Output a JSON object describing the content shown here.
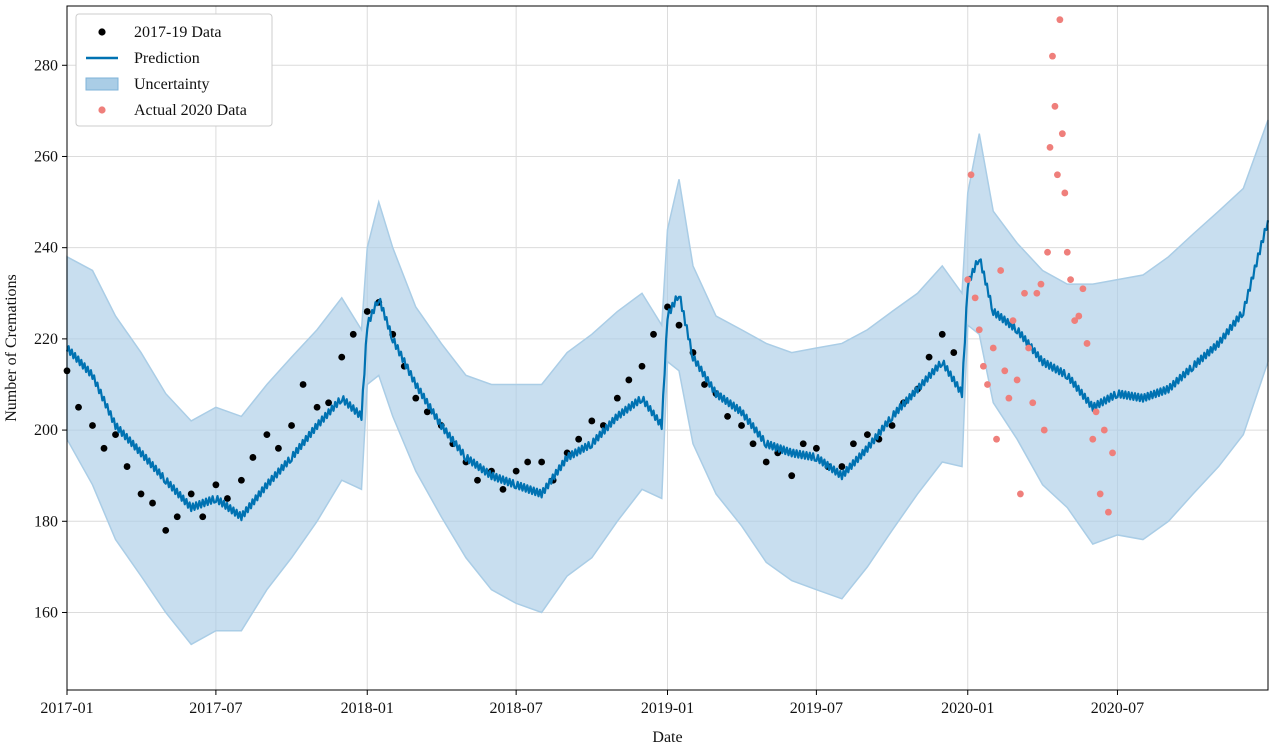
{
  "chart_data": {
    "type": "line",
    "title": "",
    "xlabel": "Date",
    "ylabel": "Number of Cremations",
    "xlim": [
      "2017-01-01",
      "2020-12-31"
    ],
    "ylim": [
      143,
      293
    ],
    "x_ticks": [
      "2017-01",
      "2017-07",
      "2018-01",
      "2018-07",
      "2019-01",
      "2019-07",
      "2020-01",
      "2020-07"
    ],
    "y_ticks": [
      160,
      180,
      200,
      220,
      240,
      260,
      280
    ],
    "grid": true,
    "legend_position": "top-left",
    "colors": {
      "data_points": "#000000",
      "prediction": "#0072b2",
      "uncertainty": "#aacde6",
      "actual_2020": "#ef7f7b"
    },
    "series": [
      {
        "name": "2017-19 Data",
        "kind": "scatter",
        "x": [
          "2017-01-01",
          "2017-01-15",
          "2017-02-01",
          "2017-02-15",
          "2017-03-01",
          "2017-03-15",
          "2017-04-01",
          "2017-04-15",
          "2017-05-01",
          "2017-05-15",
          "2017-06-01",
          "2017-06-15",
          "2017-07-01",
          "2017-07-15",
          "2017-08-01",
          "2017-08-15",
          "2017-09-01",
          "2017-09-15",
          "2017-10-01",
          "2017-10-15",
          "2017-11-01",
          "2017-11-15",
          "2017-12-01",
          "2017-12-15",
          "2018-01-01",
          "2018-01-15",
          "2018-02-01",
          "2018-02-15",
          "2018-03-01",
          "2018-03-15",
          "2018-04-01",
          "2018-04-15",
          "2018-05-01",
          "2018-05-15",
          "2018-06-01",
          "2018-06-15",
          "2018-07-01",
          "2018-07-15",
          "2018-08-01",
          "2018-08-15",
          "2018-09-01",
          "2018-09-15",
          "2018-10-01",
          "2018-10-15",
          "2018-11-01",
          "2018-11-15",
          "2018-12-01",
          "2018-12-15",
          "2019-01-01",
          "2019-01-15",
          "2019-02-01",
          "2019-02-15",
          "2019-03-01",
          "2019-03-15",
          "2019-04-01",
          "2019-04-15",
          "2019-05-01",
          "2019-05-15",
          "2019-06-01",
          "2019-06-15",
          "2019-07-01",
          "2019-07-15",
          "2019-08-01",
          "2019-08-15",
          "2019-09-01",
          "2019-09-15",
          "2019-10-01",
          "2019-10-15",
          "2019-11-01",
          "2019-11-15",
          "2019-12-01",
          "2019-12-15"
        ],
        "y": [
          213,
          205,
          201,
          196,
          199,
          192,
          186,
          184,
          178,
          181,
          186,
          181,
          188,
          185,
          189,
          194,
          199,
          196,
          201,
          210,
          205,
          206,
          216,
          221,
          226,
          228,
          221,
          214,
          207,
          204,
          201,
          197,
          193,
          189,
          191,
          187,
          191,
          193,
          193,
          189,
          195,
          198,
          202,
          201,
          207,
          211,
          214,
          221,
          227,
          223,
          217,
          210,
          208,
          203,
          201,
          197,
          193,
          195,
          190,
          197,
          196,
          192,
          192,
          197,
          199,
          198,
          201,
          206,
          209,
          216,
          221,
          217
        ]
      },
      {
        "name": "Prediction",
        "kind": "line",
        "x": [
          "2017-01-01",
          "2017-02-01",
          "2017-03-01",
          "2017-04-01",
          "2017-05-01",
          "2017-06-01",
          "2017-07-01",
          "2017-08-01",
          "2017-09-01",
          "2017-10-01",
          "2017-11-01",
          "2017-12-01",
          "2017-12-25",
          "2018-01-01",
          "2018-01-15",
          "2018-02-01",
          "2018-03-01",
          "2018-04-01",
          "2018-05-01",
          "2018-06-01",
          "2018-07-01",
          "2018-08-01",
          "2018-09-01",
          "2018-10-01",
          "2018-11-01",
          "2018-12-01",
          "2018-12-25",
          "2019-01-01",
          "2019-01-15",
          "2019-02-01",
          "2019-03-01",
          "2019-04-01",
          "2019-05-01",
          "2019-06-01",
          "2019-07-01",
          "2019-08-01",
          "2019-09-01",
          "2019-10-01",
          "2019-11-01",
          "2019-12-01",
          "2019-12-25",
          "2020-01-01",
          "2020-01-15",
          "2020-02-01",
          "2020-03-01",
          "2020-04-01",
          "2020-05-01",
          "2020-06-01",
          "2020-07-01",
          "2020-08-01",
          "2020-09-01",
          "2020-10-01",
          "2020-11-01",
          "2020-12-01",
          "2020-12-31"
        ],
        "y": [
          218,
          212,
          201,
          195,
          189,
          183,
          185,
          181,
          188,
          194,
          201,
          207,
          203,
          223,
          229,
          220,
          210,
          201,
          194,
          190,
          188,
          186,
          194,
          197,
          203,
          207,
          201,
          225,
          230,
          216,
          208,
          204,
          197,
          195,
          194,
          190,
          196,
          203,
          209,
          215,
          208,
          232,
          238,
          226,
          222,
          215,
          212,
          205,
          208,
          207,
          209,
          214,
          219,
          226,
          246
        ],
        "lower": [
          198,
          188,
          176,
          168,
          160,
          153,
          156,
          156,
          165,
          172,
          180,
          189,
          187,
          210,
          212,
          203,
          191,
          181,
          172,
          165,
          162,
          160,
          168,
          172,
          180,
          187,
          185,
          215,
          213,
          197,
          186,
          179,
          171,
          167,
          165,
          163,
          170,
          178,
          186,
          193,
          192,
          223,
          221,
          206,
          198,
          188,
          183,
          175,
          177,
          176,
          180,
          186,
          192,
          199,
          215
        ],
        "upper": [
          238,
          235,
          225,
          217,
          208,
          202,
          205,
          203,
          210,
          216,
          222,
          229,
          222,
          240,
          250,
          240,
          227,
          219,
          212,
          210,
          210,
          210,
          217,
          221,
          226,
          230,
          223,
          244,
          255,
          236,
          225,
          222,
          219,
          217,
          218,
          219,
          222,
          226,
          230,
          236,
          230,
          252,
          265,
          248,
          241,
          235,
          232,
          232,
          233,
          234,
          238,
          243,
          248,
          253,
          268
        ]
      },
      {
        "name": "Uncertainty",
        "kind": "band"
      },
      {
        "name": "Actual 2020 Data",
        "kind": "scatter",
        "x": [
          "2020-01-01",
          "2020-01-05",
          "2020-01-10",
          "2020-01-15",
          "2020-01-20",
          "2020-01-25",
          "2020-02-01",
          "2020-02-05",
          "2020-02-10",
          "2020-02-15",
          "2020-02-20",
          "2020-02-25",
          "2020-03-01",
          "2020-03-05",
          "2020-03-10",
          "2020-03-15",
          "2020-03-20",
          "2020-03-25",
          "2020-03-30",
          "2020-04-03",
          "2020-04-07",
          "2020-04-10",
          "2020-04-13",
          "2020-04-16",
          "2020-04-19",
          "2020-04-22",
          "2020-04-25",
          "2020-04-28",
          "2020-05-01",
          "2020-05-05",
          "2020-05-10",
          "2020-05-15",
          "2020-05-20",
          "2020-05-25",
          "2020-06-01",
          "2020-06-05",
          "2020-06-10",
          "2020-06-15",
          "2020-06-20",
          "2020-06-25"
        ],
        "y": [
          233,
          256,
          229,
          222,
          214,
          210,
          218,
          198,
          235,
          213,
          207,
          224,
          211,
          186,
          230,
          218,
          206,
          230,
          232,
          200,
          239,
          262,
          282,
          271,
          256,
          290,
          265,
          252,
          239,
          233,
          224,
          225,
          231,
          219,
          198,
          204,
          186,
          200,
          182,
          195
        ]
      }
    ]
  }
}
